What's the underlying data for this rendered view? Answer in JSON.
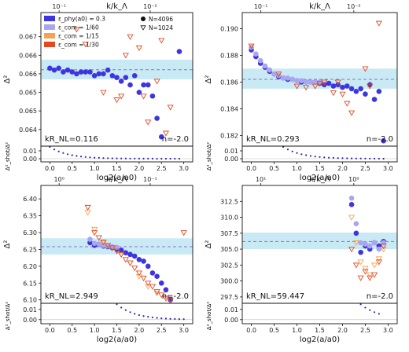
{
  "chart_data": [
    {
      "type": "scatter",
      "panel": "top-left",
      "title": "k/k_Λ",
      "xlabel": "log2(a/a0)",
      "ylabel": "Δ²",
      "xlim": [
        -0.2,
        3.2
      ],
      "ylim": [
        0.06355,
        0.06715
      ],
      "xticks": [
        "0.0",
        "0.5",
        "1.0",
        "1.5",
        "2.0",
        "2.5",
        "3.0"
      ],
      "yticks": [
        0.064,
        0.0645,
        0.065,
        0.0655,
        0.066,
        0.0665
      ],
      "top_ticks": [
        "10⁻¹",
        "10⁻²"
      ],
      "band": [
        0.06535,
        0.06588
      ],
      "ref_line": 0.06561,
      "annotation_left": "kR_NL=0.116",
      "annotation_right": "n=-2.0",
      "legend": {
        "placement": "top-left",
        "color_entries": [
          {
            "label": "ε_phy(a0) = 0.3",
            "color": "#3d35e0"
          },
          {
            "label": "ε_com = 1/60",
            "color": "#a9a6f0"
          },
          {
            "label": "ε_com = 1/15",
            "color": "#f6a253"
          },
          {
            "label": "ε_com = 1/30",
            "color": "#e24b22"
          }
        ],
        "marker_entries": [
          {
            "label": "N=4096",
            "marker": "circle"
          },
          {
            "label": "N=1024",
            "marker": "triangle-down"
          }
        ]
      },
      "series": [
        {
          "name": "ε_phy(a0) = 0.3, N=4096",
          "marker": "circle",
          "color": "#3d35e0",
          "x": [
            0.0,
            0.1,
            0.2,
            0.3,
            0.4,
            0.5,
            0.6,
            0.7,
            0.8,
            0.9,
            1.0,
            1.1,
            1.2,
            1.3,
            1.4,
            1.5,
            1.6,
            1.7,
            1.8,
            1.9,
            2.0,
            2.1,
            2.2,
            2.3,
            2.4,
            2.5,
            2.9
          ],
          "y": [
            0.06565,
            0.0656,
            0.06565,
            0.06555,
            0.0656,
            0.06555,
            0.0655,
            0.06555,
            0.06555,
            0.06555,
            0.06545,
            0.0655,
            0.0655,
            0.0656,
            0.06545,
            0.0654,
            0.0653,
            0.0654,
            0.0652,
            0.06545,
            0.065,
            0.0652,
            0.0652,
            0.0649,
            0.0643,
            0.0638,
            0.0661
          ]
        },
        {
          "name": "ε_com = 1/30, N=1024",
          "marker": "triangle-down",
          "color": "#e24b22",
          "x": [
            0.6,
            0.8,
            1.2,
            1.5,
            1.6,
            1.7,
            1.8,
            2.0,
            2.1,
            2.2,
            2.4,
            2.5,
            2.6,
            2.7
          ],
          "y": [
            0.0667,
            0.0663,
            0.065,
            0.0648,
            0.0649,
            0.066,
            0.0665,
            0.0662,
            0.0649,
            0.0642,
            0.0653,
            0.0664,
            0.0639,
            0.0646
          ]
        }
      ],
      "subpanel": {
        "ylabel": "Δ²_shot/Δ²",
        "ylim": [
          -0.004,
          0.016
        ],
        "yticks": [
          0.0,
          0.01
        ],
        "curve_x": [
          0.0,
          0.1,
          0.2,
          0.3,
          0.4,
          0.5,
          0.6,
          0.7,
          0.8,
          0.9,
          1.0,
          1.1,
          1.2,
          1.3,
          1.4,
          1.5,
          1.6,
          1.7,
          1.8,
          1.9,
          2.0,
          2.1,
          2.2,
          2.3,
          2.4,
          2.5,
          2.6,
          2.7,
          2.8,
          2.9
        ],
        "curve_y": [
          0.015,
          0.0118,
          0.0093,
          0.0073,
          0.0057,
          0.0045,
          0.0035,
          0.0028,
          0.0022,
          0.0017,
          0.0013,
          0.0011,
          0.0008,
          0.0007,
          0.0005,
          0.0004,
          0.0003,
          0.0003,
          0.0002,
          0.0002,
          0.0001,
          0.0001,
          0.0001,
          0.0001,
          0.0,
          0.0,
          0.0,
          0.0,
          0.0,
          0.0
        ]
      }
    },
    {
      "type": "scatter",
      "panel": "top-right",
      "title": "k/k_Λ",
      "xlabel": "log2(a/a0)",
      "ylabel": "Δ²",
      "xlim": [
        -0.2,
        3.2
      ],
      "ylim": [
        0.1812,
        0.1912
      ],
      "xticks": [
        "0.0",
        "0.5",
        "1.0",
        "1.5",
        "2.0",
        "2.5",
        "3.0"
      ],
      "yticks": [
        0.182,
        0.184,
        0.186,
        0.188,
        0.19
      ],
      "top_ticks": [
        "10⁻¹",
        "10⁻²"
      ],
      "band": [
        0.1855,
        0.187
      ],
      "ref_line": 0.1862,
      "annotation_left": "kR_NL=0.293",
      "annotation_right": "n=-2.0",
      "series": [
        {
          "name": "ε_phy(a0) = 0.3, N=4096",
          "marker": "circle",
          "color": "#3d35e0",
          "x": [
            0.0,
            0.1,
            0.2,
            0.3,
            0.4,
            0.5,
            0.6,
            0.7,
            0.8,
            0.9,
            1.0,
            1.1,
            1.2,
            1.3,
            1.4,
            1.5,
            1.6,
            1.7,
            1.8,
            1.9,
            2.0,
            2.1,
            2.2,
            2.3,
            2.4,
            2.5,
            2.6,
            2.7,
            2.8,
            2.9
          ],
          "y": [
            0.1884,
            0.1879,
            0.1874,
            0.1871,
            0.1868,
            0.1866,
            0.1864,
            0.1863,
            0.1862,
            0.1862,
            0.1861,
            0.186,
            0.186,
            0.186,
            0.186,
            0.1859,
            0.1858,
            0.1859,
            0.1857,
            0.1858,
            0.1856,
            0.1857,
            0.1855,
            0.1853,
            0.1855,
            0.1851,
            0.1858,
            0.1847,
            0.1853,
            0.1816
          ]
        },
        {
          "name": "ε_com = 1/60, N=4096",
          "marker": "circle",
          "color": "#a9a6f0",
          "x": [
            0.0,
            0.1,
            0.2,
            0.3,
            0.4,
            0.5,
            0.6,
            0.7,
            0.8,
            0.9,
            1.0,
            1.1,
            1.2,
            1.3,
            1.4,
            1.5
          ],
          "y": [
            0.1886,
            0.1881,
            0.1876,
            0.1872,
            0.1869,
            0.1866,
            0.1865,
            0.1863,
            0.1863,
            0.1862,
            0.1861,
            0.1861,
            0.186,
            0.186,
            0.186,
            0.186
          ]
        },
        {
          "name": "ε_com = 1/30, N=1024",
          "marker": "triangle-down",
          "color": "#e24b22",
          "x": [
            0.0,
            0.6,
            1.0,
            1.2,
            1.4,
            1.5,
            1.6,
            1.8,
            1.9,
            2.0,
            2.1,
            2.2,
            2.5,
            2.6,
            2.8
          ],
          "y": [
            0.1887,
            0.1866,
            0.1857,
            0.1856,
            0.1857,
            0.1859,
            0.186,
            0.1852,
            0.186,
            0.1851,
            0.1844,
            0.1837,
            0.187,
            0.1857,
            0.1904
          ]
        }
      ],
      "subpanel": {
        "ylabel": "Δ²_shot/Δ²",
        "ylim": [
          -0.004,
          0.016
        ],
        "yticks": [
          0.0,
          0.01
        ],
        "curve_x": [
          0.7,
          0.8,
          0.9,
          1.0,
          1.1,
          1.2,
          1.3,
          1.4,
          1.5,
          1.6,
          1.7,
          1.8,
          1.9,
          2.0,
          2.1,
          2.2,
          2.3,
          2.4,
          2.5,
          2.6,
          2.7,
          2.8,
          2.9
        ],
        "curve_y": [
          0.015,
          0.0118,
          0.0093,
          0.0073,
          0.0057,
          0.0045,
          0.0035,
          0.0028,
          0.0022,
          0.0017,
          0.0013,
          0.0011,
          0.0008,
          0.0007,
          0.0005,
          0.0004,
          0.0003,
          0.0003,
          0.0002,
          0.0002,
          0.0001,
          0.0001,
          0.0
        ]
      }
    },
    {
      "type": "scatter",
      "panel": "bottom-left",
      "title": "k/k_Λ",
      "xlabel": "log2(a/a0)",
      "ylabel": "Δ²",
      "xlim": [
        -0.2,
        3.2
      ],
      "ylim": [
        6.09,
        6.44
      ],
      "xticks": [
        "0.0",
        "0.5",
        "1.0",
        "1.5",
        "2.0",
        "2.5",
        "3.0"
      ],
      "yticks": [
        6.1,
        6.15,
        6.2,
        6.25,
        6.3,
        6.35,
        6.4
      ],
      "top_ticks": [
        "10⁰",
        "10⁻¹"
      ],
      "band": [
        6.235,
        6.283
      ],
      "ref_line": 6.258,
      "annotation_left": "kR_NL=2.949",
      "annotation_right": "n=-2.0",
      "series": [
        {
          "name": "ε_phy(a0) = 0.3, N=4096",
          "marker": "circle",
          "color": "#3d35e0",
          "x": [
            0.9,
            1.0,
            1.1,
            1.2,
            1.3,
            1.4,
            1.5,
            1.6,
            1.7,
            1.8,
            1.9,
            2.0,
            2.1,
            2.2,
            2.3,
            2.4,
            2.5,
            2.6,
            2.7
          ],
          "y": [
            6.27,
            6.262,
            6.265,
            6.26,
            6.258,
            6.255,
            6.25,
            6.248,
            6.24,
            6.235,
            6.23,
            6.22,
            6.215,
            6.2,
            6.18,
            6.17,
            6.15,
            6.13,
            6.1
          ]
        },
        {
          "name": "ε_com = 1/60, N=4096",
          "marker": "circle",
          "color": "#a9a6f0",
          "x": [
            0.9,
            1.0,
            1.1,
            1.2,
            1.3,
            1.4,
            1.5
          ],
          "y": [
            6.28,
            6.268,
            6.266,
            6.262,
            6.26,
            6.258,
            6.256
          ]
        },
        {
          "name": "ε_com = 1/15, N=1024",
          "marker": "triangle-down",
          "color": "#f6a253",
          "x": [
            0.85,
            1.0,
            1.2,
            1.4,
            1.6,
            1.8,
            2.0,
            2.2,
            2.4
          ],
          "y": [
            6.36,
            6.31,
            6.27,
            6.255,
            6.235,
            6.21,
            6.17,
            6.14,
            6.12
          ]
        },
        {
          "name": "ε_com = 1/30, N=1024",
          "marker": "triangle-down",
          "color": "#e24b22",
          "x": [
            0.85,
            1.0,
            1.1,
            1.2,
            1.3,
            1.4,
            1.5,
            1.6,
            1.7,
            1.8,
            1.9,
            2.0,
            2.1,
            2.2,
            2.3,
            2.4,
            2.5,
            2.6,
            2.7,
            3.0
          ],
          "y": [
            6.375,
            6.3,
            6.285,
            6.272,
            6.262,
            6.255,
            6.245,
            6.235,
            6.22,
            6.21,
            6.195,
            6.18,
            6.165,
            6.15,
            6.14,
            6.125,
            6.115,
            6.105,
            6.1,
            6.3
          ]
        }
      ],
      "subpanel": {
        "ylabel": "Δ²_shot/Δ²",
        "ylim": [
          -0.004,
          0.016
        ],
        "yticks": [
          0.0,
          0.01
        ],
        "curve_x": [
          1.5,
          1.6,
          1.7,
          1.8,
          1.9,
          2.0,
          2.1,
          2.2,
          2.3,
          2.4,
          2.5,
          2.6,
          2.7,
          2.8,
          2.9,
          3.0
        ],
        "curve_y": [
          0.015,
          0.0118,
          0.0093,
          0.0073,
          0.0057,
          0.0045,
          0.0035,
          0.0028,
          0.0022,
          0.0017,
          0.0013,
          0.0011,
          0.0008,
          0.0007,
          0.0005,
          0.0004
        ]
      }
    },
    {
      "type": "scatter",
      "panel": "bottom-right",
      "title": "k/k_Λ",
      "xlabel": "log2(a/a0)",
      "ylabel": "Δ²",
      "xlim": [
        -0.2,
        3.2
      ],
      "ylim": [
        296.5,
        315.0
      ],
      "xticks": [
        "0.0",
        "0.5",
        "1.0",
        "1.5",
        "2.0",
        "2.5",
        "3.0"
      ],
      "yticks": [
        297.5,
        300.0,
        302.5,
        305.0,
        307.5,
        310.0,
        312.5
      ],
      "top_ticks": [
        "10¹",
        "10⁰"
      ],
      "band": [
        305.0,
        307.6
      ],
      "ref_line": 306.2,
      "annotation_left": "kR_NL=59.447",
      "annotation_right": "n=-2.0",
      "series": [
        {
          "name": "ε_phy(a0) = 0.3, N=4096",
          "marker": "circle",
          "color": "#3d35e0",
          "x": [
            2.2,
            2.3,
            2.4,
            2.5,
            2.6,
            2.7,
            2.8,
            2.9
          ],
          "y": [
            312.0,
            307.5,
            304.5,
            305.5,
            305.0,
            306.0,
            305.5,
            306.2
          ]
        },
        {
          "name": "ε_com = 1/60, N=4096",
          "marker": "circle",
          "color": "#a9a6f0",
          "x": [
            2.2,
            2.3,
            2.4,
            2.5,
            2.6,
            2.7,
            2.8,
            2.9
          ],
          "y": [
            313.0,
            309.0,
            306.0,
            305.8,
            305.5,
            306.0,
            305.0,
            306.0
          ]
        },
        {
          "name": "ε_com = 1/15, N=1024",
          "marker": "triangle-down",
          "color": "#f6a253",
          "x": [
            2.2,
            2.3,
            2.4,
            2.5,
            2.6,
            2.7,
            2.8,
            2.9
          ],
          "y": [
            310.0,
            306.0,
            303.0,
            302.0,
            301.0,
            302.5,
            303.5,
            305.0
          ]
        },
        {
          "name": "ε_com = 1/30, N=1024",
          "marker": "triangle-down",
          "color": "#e24b22",
          "x": [
            2.2,
            2.3,
            2.4,
            2.5,
            2.6,
            2.7,
            2.8,
            2.9
          ],
          "y": [
            305.0,
            302.5,
            300.5,
            301.5,
            300.5,
            301.0,
            303.0,
            305.5
          ]
        }
      ],
      "subpanel": {
        "ylabel": "Δ²_shot/Δ²",
        "ylim": [
          -0.004,
          0.016
        ],
        "yticks": [
          0.0,
          0.01
        ],
        "curve_x": [
          2.4,
          2.5,
          2.6,
          2.7,
          2.8
        ],
        "curve_y": [
          0.015,
          0.0118,
          0.0093,
          0.0073,
          0.0057
        ]
      }
    }
  ]
}
